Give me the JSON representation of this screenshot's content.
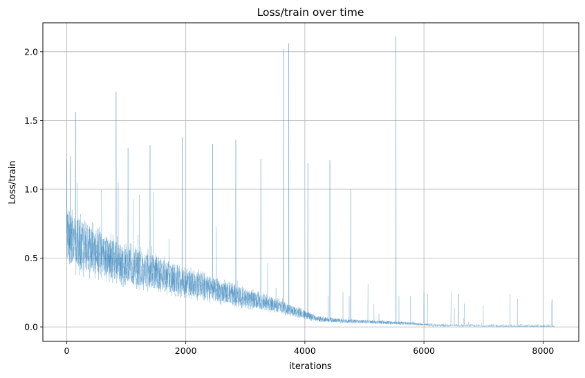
{
  "chart_data": {
    "type": "line",
    "title": "Loss/train over time",
    "xlabel": "iterations",
    "ylabel": "Loss/train",
    "xlim": [
      -400,
      8600
    ],
    "ylim": [
      -0.105,
      2.21
    ],
    "xticks": [
      0,
      2000,
      4000,
      6000,
      8000
    ],
    "xtick_labels": [
      "0",
      "2000",
      "4000",
      "6000",
      "8000"
    ],
    "yticks": [
      0.0,
      0.5,
      1.0,
      1.5,
      2.0
    ],
    "ytick_labels": [
      "0.0",
      "0.5",
      "1.0",
      "1.5",
      "2.0"
    ],
    "grid": true,
    "legend": "none",
    "colors": {
      "line": "#1f77b4",
      "grid": "#b0b0b0",
      "axes": "#000000"
    },
    "series": [
      {
        "x_start": 0,
        "x_end": 8190,
        "trend": {
          "x": [
            0,
            100,
            300,
            600,
            900,
            1200,
            1600,
            2000,
            2500,
            3000,
            3500,
            4000,
            4200,
            4600,
            5200,
            5800,
            6200,
            7000,
            8190
          ],
          "y": [
            0.68,
            0.62,
            0.58,
            0.52,
            0.47,
            0.43,
            0.38,
            0.33,
            0.27,
            0.21,
            0.16,
            0.09,
            0.06,
            0.045,
            0.035,
            0.025,
            0.01,
            0.006,
            0.005
          ]
        },
        "spikes": [
          {
            "x": 0,
            "y": 1.22
          },
          {
            "x": 60,
            "y": 1.24
          },
          {
            "x": 150,
            "y": 1.56
          },
          {
            "x": 830,
            "y": 1.71
          },
          {
            "x": 1030,
            "y": 1.3
          },
          {
            "x": 1400,
            "y": 1.32
          },
          {
            "x": 1940,
            "y": 1.38
          },
          {
            "x": 2450,
            "y": 1.33
          },
          {
            "x": 2840,
            "y": 1.36
          },
          {
            "x": 3260,
            "y": 1.22
          },
          {
            "x": 3640,
            "y": 2.02
          },
          {
            "x": 3730,
            "y": 2.06
          },
          {
            "x": 4050,
            "y": 1.19
          },
          {
            "x": 4420,
            "y": 1.21
          },
          {
            "x": 4770,
            "y": 1.0
          },
          {
            "x": 5530,
            "y": 2.11
          },
          {
            "x": 6580,
            "y": 0.24
          },
          {
            "x": 8150,
            "y": 0.2
          }
        ]
      }
    ]
  }
}
